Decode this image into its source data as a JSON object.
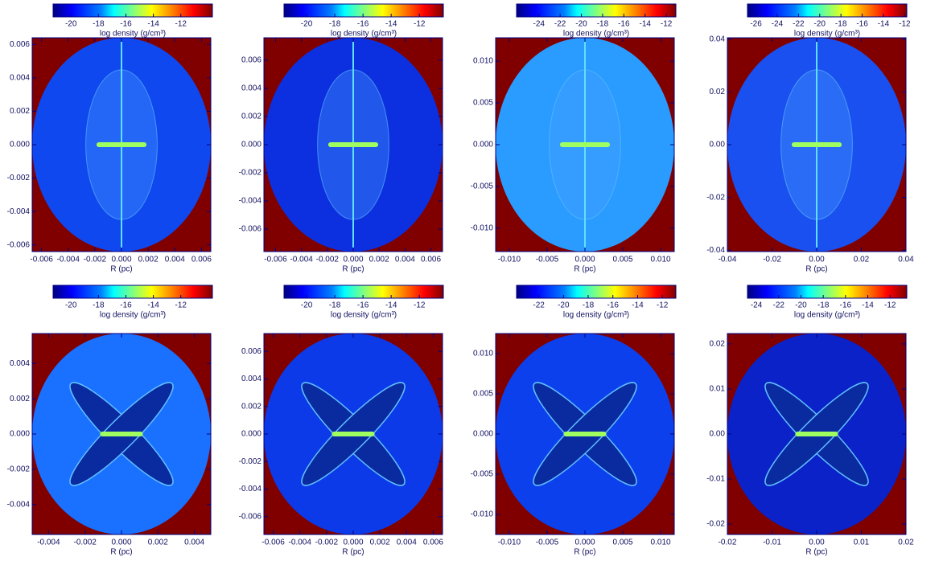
{
  "panels": [
    {
      "colorbar": {
        "ticks": [
          -20,
          -18,
          -16,
          -14,
          -12
        ],
        "range": [
          -21.3,
          -9.7
        ],
        "label": "log density (g/cm³)"
      },
      "xticks": [
        -0.006,
        -0.004,
        -0.002,
        {
          "value": 0,
          "label": "0.000"
        },
        0.002,
        0.004,
        0.006
      ],
      "yticks": [
        -0.006,
        -0.004,
        -0.002,
        {
          "value": 0,
          "label": "0.000"
        },
        0.002,
        0.004,
        0.006
      ],
      "xlim": [
        -0.0067,
        0.0067
      ],
      "ylim": [
        -0.0064,
        0.0064
      ],
      "xlabel": "R (pc)"
    },
    {
      "colorbar": {
        "ticks": [
          -20,
          -18,
          -16,
          -14,
          -12
        ],
        "range": [
          -21.6,
          -10.3
        ],
        "label": "log density (g/cm³)"
      },
      "xticks": [
        -0.006,
        -0.004,
        -0.002,
        {
          "value": 0,
          "label": "0.000"
        },
        0.002,
        0.004,
        0.006
      ],
      "yticks": [
        -0.006,
        -0.004,
        -0.002,
        {
          "value": 0,
          "label": "0.000"
        },
        0.002,
        0.004,
        0.006
      ],
      "xlim": [
        -0.0069,
        0.0069
      ],
      "ylim": [
        -0.0076,
        0.0076
      ],
      "xlabel": "R (pc)"
    },
    {
      "colorbar": {
        "ticks": [
          -24,
          -22,
          -20,
          -18,
          -16,
          -14,
          -12
        ],
        "range": [
          -26.1,
          -11.1
        ],
        "label": "log density (g/cm³)"
      },
      "xticks": [
        {
          "value": -0.01,
          "label": "-0.010"
        },
        -0.005,
        {
          "value": 0,
          "label": "0.000"
        },
        0.005,
        {
          "value": 0.01,
          "label": "0.010"
        }
      ],
      "yticks": [
        {
          "value": -0.01,
          "label": "-0.010"
        },
        -0.005,
        {
          "value": 0,
          "label": "0.000"
        },
        0.005,
        {
          "value": 0.01,
          "label": "0.010"
        }
      ],
      "xlim": [
        -0.0118,
        0.0118
      ],
      "ylim": [
        -0.0128,
        0.0128
      ],
      "xlabel": "R (pc)"
    },
    {
      "colorbar": {
        "ticks": [
          -26,
          -24,
          -22,
          -20,
          -18,
          -16,
          -14,
          -12
        ],
        "range": [
          -26.8,
          -11.8
        ],
        "label": "log density (g/cm³)"
      },
      "xticks": [
        -0.04,
        -0.02,
        {
          "value": 0,
          "label": "0.00"
        },
        0.02,
        0.04
      ],
      "yticks": [
        -0.04,
        -0.02,
        {
          "value": 0,
          "label": "0.00"
        },
        0.02,
        0.04
      ],
      "xlim": [
        -0.04,
        0.04
      ],
      "ylim": [
        -0.0405,
        0.0405
      ],
      "xlabel": "R (pc)"
    },
    {
      "colorbar": {
        "ticks": [
          -20,
          -18,
          -16,
          -14,
          -12
        ],
        "range": [
          -21.3,
          -9.7
        ],
        "label": "log density (g/cm³)"
      },
      "xticks": [
        -0.004,
        -0.002,
        {
          "value": 0,
          "label": "0.000"
        },
        0.002,
        0.004
      ],
      "yticks": [
        -0.004,
        -0.002,
        {
          "value": 0,
          "label": "0.000"
        },
        0.002,
        0.004
      ],
      "xlim": [
        -0.0049,
        0.0049
      ],
      "ylim": [
        -0.0057,
        0.0057
      ],
      "xlabel": "R (pc)"
    },
    {
      "colorbar": {
        "ticks": [
          -20,
          -18,
          -16,
          -14,
          -12
        ],
        "range": [
          -21.6,
          -10.3
        ],
        "label": "log density (g/cm³)"
      },
      "xticks": [
        -0.006,
        -0.004,
        -0.002,
        {
          "value": 0,
          "label": "0.000"
        },
        0.002,
        0.004,
        0.006
      ],
      "yticks": [
        -0.006,
        -0.004,
        -0.002,
        {
          "value": 0,
          "label": "0.000"
        },
        0.002,
        0.004,
        0.006
      ],
      "xlim": [
        -0.0067,
        0.0067
      ],
      "ylim": [
        -0.0073,
        0.0073
      ],
      "xlabel": "R (pc)"
    },
    {
      "colorbar": {
        "ticks": [
          -22,
          -20,
          -18,
          -16,
          -14,
          -12
        ],
        "range": [
          -23.8,
          -10.9
        ],
        "label": "log density (g/cm³)"
      },
      "xticks": [
        {
          "value": -0.01,
          "label": "-0.010"
        },
        -0.005,
        {
          "value": 0,
          "label": "0.000"
        },
        0.005,
        {
          "value": 0.01,
          "label": "0.010"
        }
      ],
      "yticks": [
        {
          "value": -0.01,
          "label": "-0.010"
        },
        -0.005,
        {
          "value": 0,
          "label": "0.000"
        },
        0.005,
        {
          "value": 0.01,
          "label": "0.010"
        }
      ],
      "xlim": [
        -0.0118,
        0.0118
      ],
      "ylim": [
        -0.0125,
        0.0125
      ],
      "xlabel": "R (pc)"
    },
    {
      "colorbar": {
        "ticks": [
          -24,
          -22,
          -20,
          -18,
          -16,
          -14,
          -12
        ],
        "range": [
          -24.8,
          -10.5
        ],
        "label": "log density (g/cm³)"
      },
      "xticks": [
        -0.02,
        -0.01,
        {
          "value": 0,
          "label": "0.00"
        },
        0.01,
        0.02
      ],
      "yticks": [
        -0.02,
        -0.01,
        {
          "value": 0,
          "label": "0.00"
        },
        0.01,
        0.02
      ],
      "xlim": [
        -0.02,
        0.02
      ],
      "ylim": [
        -0.0223,
        0.0223
      ],
      "xlabel": "R (pc)"
    }
  ]
}
